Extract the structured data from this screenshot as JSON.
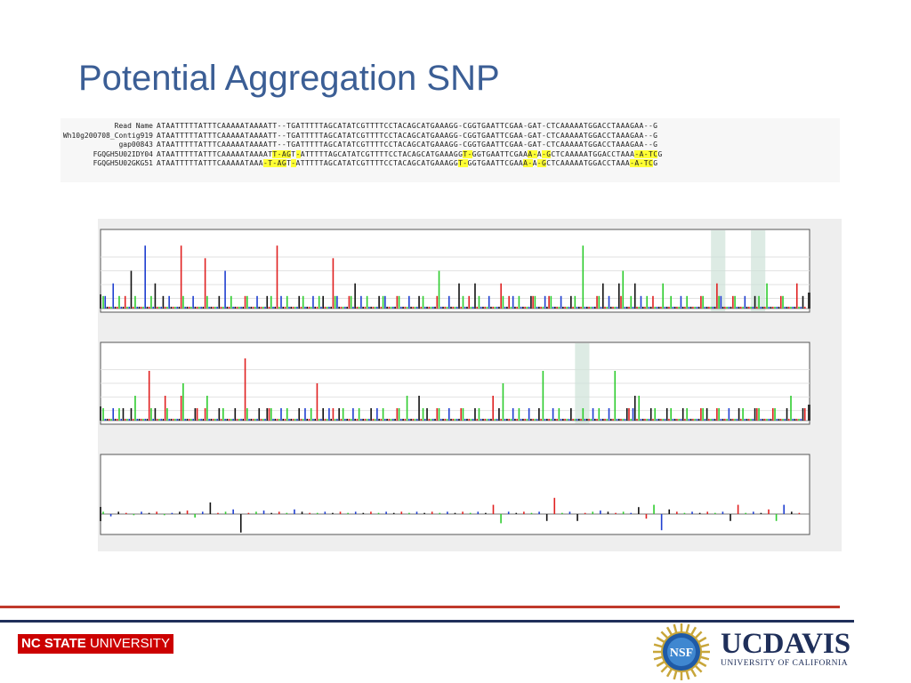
{
  "slide": {
    "title": "Potential Aggregation SNP"
  },
  "alignment": {
    "rows": [
      {
        "name": "Read Name",
        "segments": [
          {
            "t": "ATAATTTTTATTTCAAAAATAAAATT--TGATTTTTAGCATATCGTTTTCCTACAGCATGAAAGG-CGGTGAATTCGAA-GAT-CTCAAAAATGGACCTAAAGAA--G",
            "h": false
          }
        ]
      },
      {
        "name": "Wh10g200708_Contig919",
        "segments": [
          {
            "t": "ATAATTTTTATTTCAAAAATAAAATT--TGATTTTTAGCATATCGTTTTCCTACAGCATGAAAGG-CGGTGAATTCGAA-GAT-CTCAAAAATGGACCTAAAGAA--G",
            "h": false
          }
        ]
      },
      {
        "name": "gap00843",
        "segments": [
          {
            "t": "ATAATTTTTATTTCAAAAATAAAATT--TGATTTTTAGCATATCGTTTTCCTACAGCATGAAAGG-CGGTGAATTCGAA-GAT-CTCAAAAATGGACCTAAAGAA--G",
            "h": false
          }
        ]
      },
      {
        "name": "FGQGH5U02IDY04",
        "segments": [
          {
            "t": "ATAATTTTTATTTCAAAAATAAAAT",
            "h": false
          },
          {
            "t": "T-AG",
            "h": true
          },
          {
            "t": "T",
            "h": false
          },
          {
            "t": "-",
            "h": true
          },
          {
            "t": "ATTTTTAGCATATCGTTTTCCTACAGCATGAAAGG",
            "h": false
          },
          {
            "t": "T-",
            "h": true
          },
          {
            "t": "GGTGAATTCGAA",
            "h": false
          },
          {
            "t": "A-",
            "h": true
          },
          {
            "t": "A",
            "h": false
          },
          {
            "t": "-G",
            "h": true
          },
          {
            "t": "CTCAAAAATGGACCTAAA",
            "h": false
          },
          {
            "t": "-A-TC",
            "h": true
          },
          {
            "t": "G",
            "h": false
          }
        ]
      },
      {
        "name": "FGQGH5U02GKG51",
        "segments": [
          {
            "t": "ATAATTTTTATTTCAAAAATAAA",
            "h": false
          },
          {
            "t": "-T-AG",
            "h": true
          },
          {
            "t": "T",
            "h": false
          },
          {
            "t": "-",
            "h": true
          },
          {
            "t": "ATTTTTAGCATATCGTTTTCCTACAGCATGAAAGG",
            "h": false
          },
          {
            "t": "T-",
            "h": true
          },
          {
            "t": "GGTGAATTCGAA",
            "h": false
          },
          {
            "t": "A-",
            "h": true
          },
          {
            "t": "A",
            "h": false
          },
          {
            "t": "-G",
            "h": true
          },
          {
            "t": "CTCAAAAATGGACCTAAA",
            "h": false
          },
          {
            "t": "-A-TC",
            "h": true
          },
          {
            "t": "G",
            "h": false
          }
        ]
      }
    ]
  },
  "colors": {
    "title": "#3b5e95",
    "A": "#2ecc2e",
    "C": "#1f3fd0",
    "G": "#111111",
    "T": "#e02020",
    "highlight": "#ffff33",
    "shaded_column": "#cfe3d8",
    "footer_red": "#c0392b",
    "footer_blue": "#1f2f5a"
  },
  "chart_data": [
    {
      "type": "bar",
      "description_key": "flowgram-read-1",
      "shaded_columns": [
        76,
        81
      ],
      "values": [
        [
          1,
          1,
          0,
          0
        ],
        [
          0,
          2,
          0,
          0
        ],
        [
          1,
          0,
          0,
          1
        ],
        [
          0,
          0,
          3,
          0
        ],
        [
          1,
          0,
          0,
          0
        ],
        [
          0,
          5,
          0,
          0
        ],
        [
          1,
          0,
          2,
          0
        ],
        [
          0,
          0,
          1,
          0
        ],
        [
          0,
          1,
          0,
          0
        ],
        [
          0,
          0,
          0,
          5
        ],
        [
          1,
          0,
          0,
          0
        ],
        [
          0,
          1,
          0,
          0
        ],
        [
          0,
          0,
          0,
          4
        ],
        [
          1,
          0,
          0,
          0
        ],
        [
          0,
          0,
          1,
          0
        ],
        [
          0,
          3,
          0,
          0
        ],
        [
          1,
          0,
          0,
          0
        ],
        [
          0,
          0,
          0,
          1
        ],
        [
          1,
          0,
          0,
          0
        ],
        [
          0,
          1,
          0,
          0
        ],
        [
          0,
          0,
          1,
          0
        ],
        [
          1,
          0,
          0,
          5
        ],
        [
          0,
          1,
          0,
          0
        ],
        [
          1,
          0,
          0,
          0
        ],
        [
          0,
          0,
          1,
          0
        ],
        [
          1,
          0,
          0,
          0
        ],
        [
          0,
          1,
          0,
          0
        ],
        [
          1,
          0,
          1,
          0
        ],
        [
          0,
          0,
          0,
          4
        ],
        [
          1,
          1,
          0,
          0
        ],
        [
          0,
          0,
          0,
          1
        ],
        [
          1,
          0,
          2,
          0
        ],
        [
          0,
          1,
          0,
          0
        ],
        [
          1,
          0,
          0,
          0
        ],
        [
          0,
          0,
          1,
          0
        ],
        [
          1,
          1,
          0,
          0
        ],
        [
          0,
          0,
          0,
          1
        ],
        [
          1,
          0,
          0,
          0
        ],
        [
          0,
          1,
          0,
          0
        ],
        [
          0,
          0,
          1,
          0
        ],
        [
          1,
          0,
          0,
          0
        ],
        [
          0,
          0,
          0,
          1
        ],
        [
          3,
          0,
          0,
          0
        ],
        [
          0,
          1,
          0,
          0
        ],
        [
          0,
          0,
          2,
          0
        ],
        [
          1,
          0,
          0,
          1
        ],
        [
          0,
          0,
          2,
          0
        ],
        [
          1,
          0,
          0,
          0
        ],
        [
          0,
          1,
          0,
          0
        ],
        [
          0,
          0,
          0,
          2
        ],
        [
          1,
          0,
          0,
          1
        ],
        [
          0,
          1,
          0,
          0
        ],
        [
          1,
          0,
          0,
          0
        ],
        [
          0,
          0,
          1,
          1
        ],
        [
          1,
          0,
          0,
          0
        ],
        [
          0,
          1,
          0,
          1
        ],
        [
          1,
          0,
          0,
          0
        ],
        [
          0,
          1,
          0,
          0
        ],
        [
          0,
          0,
          1,
          0
        ],
        [
          1,
          0,
          0,
          0
        ],
        [
          5,
          0,
          0,
          0
        ],
        [
          0,
          0,
          0,
          1
        ],
        [
          1,
          0,
          2,
          0
        ],
        [
          0,
          1,
          0,
          0
        ],
        [
          0,
          0,
          2,
          1
        ],
        [
          3,
          0,
          0,
          0
        ],
        [
          1,
          0,
          2,
          0
        ],
        [
          0,
          1,
          0,
          0
        ],
        [
          1,
          0,
          0,
          1
        ],
        [
          0,
          0,
          0,
          0
        ],
        [
          2,
          0,
          0,
          0
        ],
        [
          1,
          0,
          0,
          0
        ],
        [
          0,
          1,
          0,
          0
        ],
        [
          1,
          0,
          0,
          0
        ],
        [
          0,
          0,
          0,
          1
        ],
        [
          1,
          0,
          0,
          0
        ],
        [
          0,
          0,
          0,
          2
        ],
        [
          1,
          1,
          0,
          0
        ],
        [
          0,
          0,
          0,
          1
        ],
        [
          1,
          0,
          0,
          0
        ],
        [
          0,
          1,
          0,
          0
        ],
        [
          0,
          0,
          1,
          0
        ],
        [
          1,
          0,
          0,
          0
        ],
        [
          2,
          0,
          0,
          0
        ],
        [
          0,
          0,
          0,
          1
        ],
        [
          1,
          0,
          0,
          0
        ],
        [
          0,
          0,
          0,
          2
        ],
        [
          0,
          0,
          1,
          0
        ]
      ]
    },
    {
      "type": "bar",
      "description_key": "flowgram-read-2",
      "shaded_columns": [
        59
      ],
      "values": [
        [
          1,
          0,
          0,
          0
        ],
        [
          0,
          1,
          0,
          0
        ],
        [
          1,
          0,
          1,
          0
        ],
        [
          0,
          0,
          1,
          0
        ],
        [
          2,
          0,
          0,
          0
        ],
        [
          0,
          0,
          0,
          4
        ],
        [
          1,
          0,
          1,
          0
        ],
        [
          0,
          0,
          0,
          2
        ],
        [
          1,
          0,
          0,
          0
        ],
        [
          0,
          0,
          0,
          2
        ],
        [
          3,
          0,
          0,
          0
        ],
        [
          0,
          0,
          1,
          1
        ],
        [
          0,
          0,
          0,
          1
        ],
        [
          2,
          0,
          0,
          0
        ],
        [
          0,
          0,
          1,
          0
        ],
        [
          1,
          0,
          0,
          0
        ],
        [
          0,
          0,
          1,
          0
        ],
        [
          0,
          0,
          0,
          5
        ],
        [
          1,
          0,
          0,
          0
        ],
        [
          0,
          0,
          1,
          0
        ],
        [
          0,
          0,
          1,
          1
        ],
        [
          1,
          0,
          0,
          0
        ],
        [
          0,
          1,
          0,
          0
        ],
        [
          1,
          0,
          0,
          0
        ],
        [
          0,
          0,
          1,
          0
        ],
        [
          0,
          1,
          0,
          0
        ],
        [
          1,
          0,
          0,
          3
        ],
        [
          0,
          0,
          1,
          0
        ],
        [
          0,
          1,
          0,
          1
        ],
        [
          0,
          0,
          1,
          0
        ],
        [
          1,
          0,
          0,
          0
        ],
        [
          0,
          1,
          0,
          0
        ],
        [
          1,
          0,
          0,
          0
        ],
        [
          0,
          0,
          1,
          0
        ],
        [
          0,
          1,
          0,
          0
        ],
        [
          1,
          0,
          0,
          0
        ],
        [
          0,
          0,
          0,
          1
        ],
        [
          1,
          0,
          0,
          0
        ],
        [
          2,
          0,
          0,
          0
        ],
        [
          0,
          0,
          2,
          0
        ],
        [
          1,
          0,
          1,
          0
        ],
        [
          0,
          0,
          0,
          1
        ],
        [
          1,
          0,
          0,
          0
        ],
        [
          0,
          1,
          0,
          0
        ],
        [
          0,
          0,
          0,
          1
        ],
        [
          1,
          0,
          0,
          0
        ],
        [
          0,
          0,
          1,
          0
        ],
        [
          1,
          0,
          0,
          0
        ],
        [
          0,
          0,
          0,
          2
        ],
        [
          0,
          0,
          1,
          0
        ],
        [
          3,
          0,
          0,
          0
        ],
        [
          0,
          1,
          0,
          0
        ],
        [
          1,
          0,
          0,
          0
        ],
        [
          0,
          1,
          0,
          0
        ],
        [
          0,
          0,
          1,
          0
        ],
        [
          4,
          0,
          0,
          0
        ],
        [
          0,
          1,
          0,
          0
        ],
        [
          1,
          0,
          0,
          0
        ],
        [
          0,
          0,
          1,
          0
        ],
        [
          0,
          0,
          0,
          0
        ],
        [
          1,
          0,
          0,
          0
        ],
        [
          0,
          1,
          0,
          0
        ],
        [
          1,
          0,
          0,
          0
        ],
        [
          0,
          1,
          0,
          0
        ],
        [
          4,
          0,
          0,
          0
        ],
        [
          0,
          0,
          1,
          1
        ],
        [
          0,
          1,
          2,
          0
        ],
        [
          2,
          0,
          0,
          0
        ],
        [
          0,
          0,
          1,
          0
        ],
        [
          1,
          0,
          0,
          0
        ],
        [
          0,
          0,
          1,
          0
        ],
        [
          1,
          0,
          0,
          0
        ],
        [
          0,
          0,
          1,
          0
        ],
        [
          1,
          0,
          0,
          0
        ],
        [
          0,
          0,
          0,
          1
        ],
        [
          1,
          0,
          1,
          0
        ],
        [
          0,
          0,
          0,
          1
        ],
        [
          1,
          0,
          0,
          0
        ],
        [
          0,
          1,
          0,
          0
        ],
        [
          0,
          0,
          1,
          0
        ],
        [
          1,
          0,
          0,
          0
        ],
        [
          0,
          0,
          1,
          1
        ],
        [
          1,
          0,
          0,
          0
        ],
        [
          0,
          0,
          0,
          1
        ],
        [
          1,
          0,
          0,
          0
        ],
        [
          0,
          0,
          1,
          0
        ],
        [
          2,
          0,
          0,
          0
        ],
        [
          0,
          0,
          1,
          1
        ]
      ]
    },
    {
      "type": "bar",
      "description_key": "flowgram-difference",
      "shaded_columns": [],
      "values": [
        0.2,
        -0.2,
        0.2,
        0.1,
        -0.1,
        0.2,
        0.1,
        0.2,
        -0.1,
        0.1,
        0.2,
        0.3,
        -0.3,
        0.2,
        1.0,
        0.1,
        0.2,
        0.4,
        -1.6,
        0.1,
        0.2,
        0.3,
        0.1,
        0.2,
        0.1,
        0.4,
        0.2,
        0.1,
        0.1,
        0.2,
        0.1,
        0.2,
        0.1,
        0.2,
        0.1,
        0.2,
        0.1,
        0.2,
        0.1,
        0.2,
        0.1,
        0.2,
        0.1,
        0.2,
        0.1,
        0.2,
        0.1,
        0.2,
        0.1,
        0.2,
        0.1,
        0.8,
        -0.8,
        0.2,
        0.1,
        0.2,
        0.1,
        0.2,
        -0.6,
        1.4,
        0.1,
        0.2,
        -0.6,
        0.1,
        0.2,
        0.3,
        0.2,
        0.1,
        0.2,
        0.1,
        0.6,
        -0.4,
        0.8,
        -1.4,
        0.4,
        0.2,
        0.1,
        0.2,
        0.1,
        0.2,
        0.1,
        0.2,
        -0.6,
        0.8,
        0.1,
        0.2,
        0.1,
        0.4,
        -0.6,
        0.8,
        0.2,
        0.1
      ]
    }
  ],
  "footer": {
    "left_logo_bold": "NC STATE",
    "left_logo_light": " UNIVERSITY",
    "seal_text": "NSF",
    "right_logo_main": "UCDAVIS",
    "right_logo_sub": "UNIVERSITY OF CALIFORNIA"
  }
}
